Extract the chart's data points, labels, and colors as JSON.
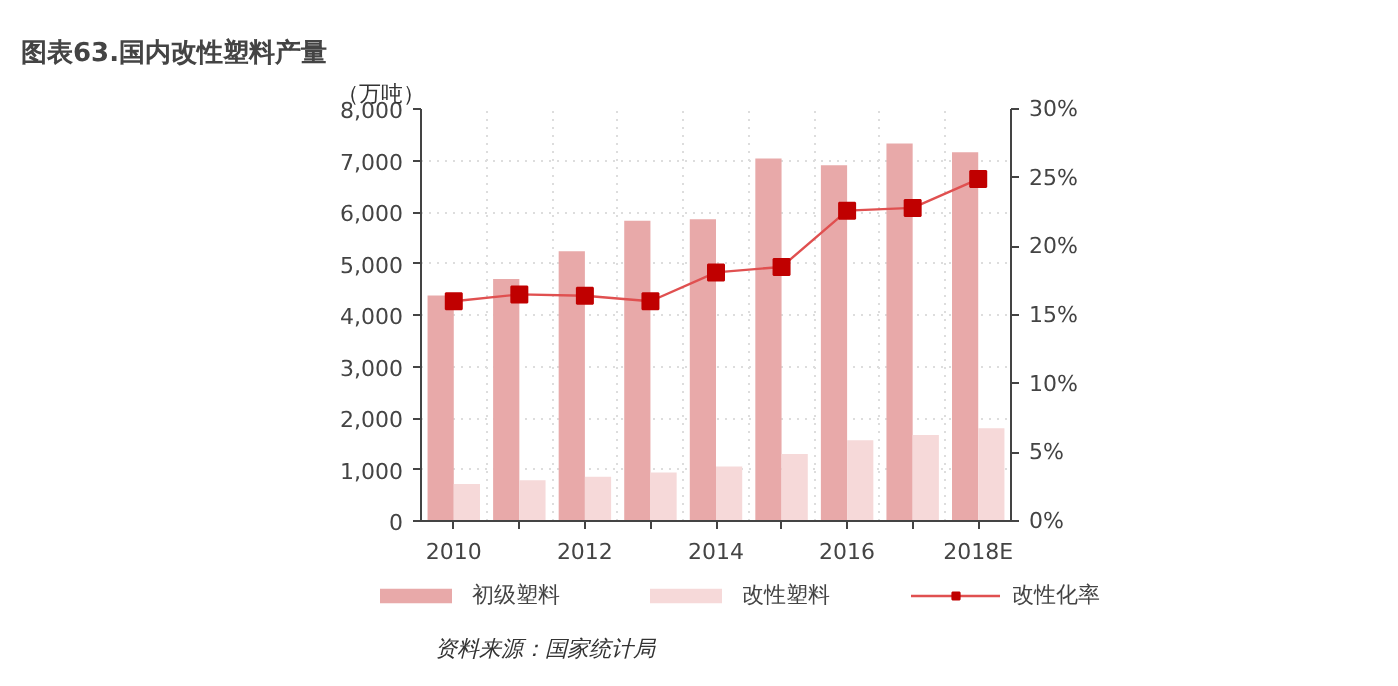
{
  "chart_data": {
    "type": "bar",
    "title": "图表63.国内改性塑料产量",
    "ylabel": "（万吨）",
    "annotations": [
      "资料来源：国家统计局"
    ],
    "categories": [
      "2010",
      null,
      "2012",
      null,
      "2014",
      null,
      "2016",
      null,
      "2018E"
    ],
    "series": [
      {
        "name": "初级塑料",
        "color": "#e8a9a9",
        "values": [
          4380,
          4700,
          5240,
          5830,
          5860,
          7040,
          6910,
          7330,
          7160
        ]
      },
      {
        "name": "改性塑料",
        "color": "#f6d9d9",
        "values": [
          720,
          790,
          860,
          940,
          1060,
          1300,
          1570,
          1670,
          1800
        ]
      },
      {
        "name": "改性化率",
        "type": "line",
        "axis": "y2",
        "color": "#c00000",
        "marker": "square",
        "values": [
          16.0,
          16.5,
          16.4,
          16.0,
          18.1,
          18.5,
          22.6,
          22.8,
          24.9
        ]
      }
    ],
    "ylim": [
      0,
      8000
    ],
    "yticks": [
      0,
      {
        "value": 1000,
        "label": "1,000"
      },
      {
        "value": 2000,
        "label": "2,000"
      },
      {
        "value": 3000,
        "label": "3,000"
      },
      {
        "value": 4000,
        "label": "4,000"
      },
      {
        "value": 5000,
        "label": "5,000"
      },
      {
        "value": 6000,
        "label": "6,000"
      },
      {
        "value": 7000,
        "label": "7,000"
      },
      {
        "value": 8000,
        "label": "8,000"
      }
    ],
    "y2lim": [
      0,
      30
    ],
    "y2ticks": [
      {
        "value": 0,
        "label": "0%"
      },
      {
        "value": 5,
        "label": "5%"
      },
      {
        "value": 10,
        "label": "10%"
      },
      {
        "value": 15,
        "label": "15%"
      },
      {
        "value": 20,
        "label": "20%"
      },
      {
        "value": 25,
        "label": "25%"
      },
      {
        "value": 30,
        "label": "30%"
      }
    ],
    "grid": true,
    "legend": "bottom"
  }
}
